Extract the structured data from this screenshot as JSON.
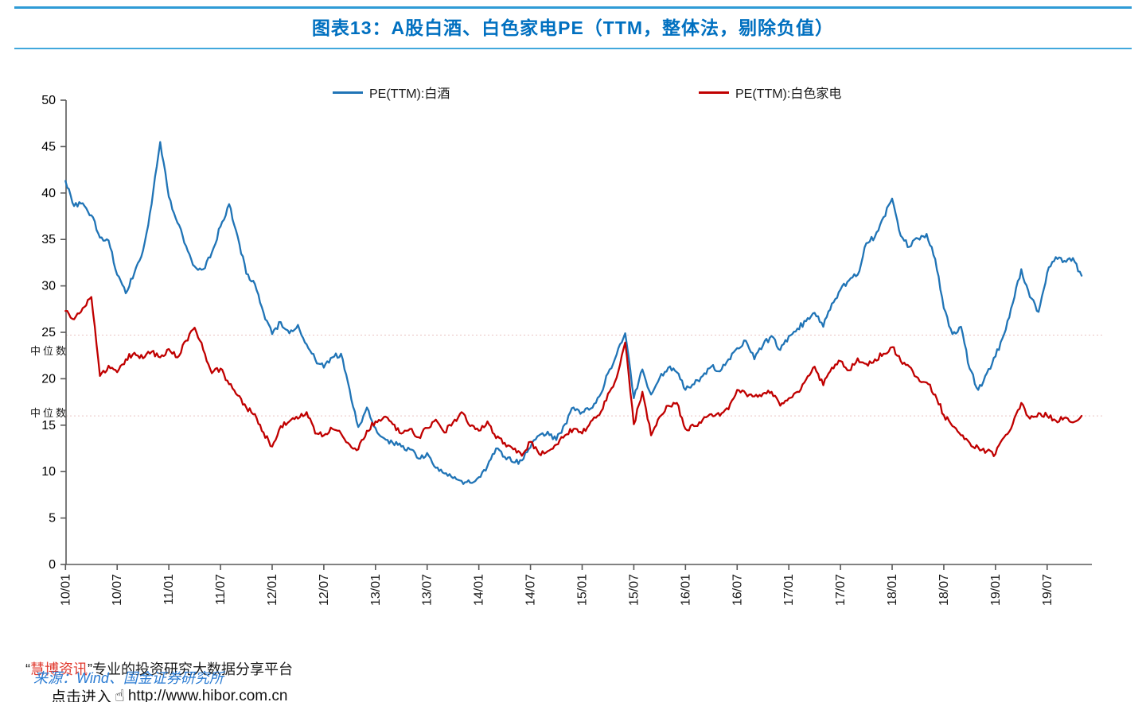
{
  "header": {
    "title": "图表13：A股白酒、白色家电PE（TTM，整体法，剔除负值）"
  },
  "colors": {
    "title_blue": "#0070c0",
    "rule_blue": "#2e9bd6",
    "baijiu_line": "#2074b6",
    "appliance_line": "#c00000",
    "median_line": "#e9c3c1",
    "axis": "#595959"
  },
  "footer": {
    "open_quote": "“",
    "brand": "慧博资讯",
    "close_quote": "”",
    "tagline": "专业的投资研究大数据分享平台",
    "source_line": "来源：Wind、国金证券研究所",
    "click_prefix": "点击进入",
    "url": "http://www.hibor.com.cn",
    "hand_icon": "☝"
  },
  "chart_data": {
    "type": "line",
    "title": "图表13：A股白酒、白色家电PE（TTM，整体法，剔除负值）",
    "xlabel": "",
    "ylabel": "",
    "ylim": [
      0,
      50
    ],
    "grid": false,
    "legend_position": "top",
    "y_ticks": [
      0,
      5,
      10,
      15,
      20,
      25,
      30,
      35,
      40,
      45,
      50
    ],
    "x_tick_labels": [
      "10/01",
      "10/07",
      "11/01",
      "11/07",
      "12/01",
      "12/07",
      "13/01",
      "13/07",
      "14/01",
      "14/07",
      "15/01",
      "15/07",
      "16/01",
      "16/07",
      "17/01",
      "17/07",
      "18/01",
      "18/07",
      "19/01",
      "19/07"
    ],
    "x": [
      "2010-01",
      "2010-02",
      "2010-03",
      "2010-04",
      "2010-05",
      "2010-06",
      "2010-07",
      "2010-08",
      "2010-09",
      "2010-10",
      "2010-11",
      "2010-12",
      "2011-01",
      "2011-02",
      "2011-03",
      "2011-04",
      "2011-05",
      "2011-06",
      "2011-07",
      "2011-08",
      "2011-09",
      "2011-10",
      "2011-11",
      "2011-12",
      "2012-01",
      "2012-02",
      "2012-03",
      "2012-04",
      "2012-05",
      "2012-06",
      "2012-07",
      "2012-08",
      "2012-09",
      "2012-10",
      "2012-11",
      "2012-12",
      "2013-01",
      "2013-02",
      "2013-03",
      "2013-04",
      "2013-05",
      "2013-06",
      "2013-07",
      "2013-08",
      "2013-09",
      "2013-10",
      "2013-11",
      "2013-12",
      "2014-01",
      "2014-02",
      "2014-03",
      "2014-04",
      "2014-05",
      "2014-06",
      "2014-07",
      "2014-08",
      "2014-09",
      "2014-10",
      "2014-11",
      "2014-12",
      "2015-01",
      "2015-02",
      "2015-03",
      "2015-04",
      "2015-05",
      "2015-06",
      "2015-07",
      "2015-08",
      "2015-09",
      "2015-10",
      "2015-11",
      "2015-12",
      "2016-01",
      "2016-02",
      "2016-03",
      "2016-04",
      "2016-05",
      "2016-06",
      "2016-07",
      "2016-08",
      "2016-09",
      "2016-10",
      "2016-11",
      "2016-12",
      "2017-01",
      "2017-02",
      "2017-03",
      "2017-04",
      "2017-05",
      "2017-06",
      "2017-07",
      "2017-08",
      "2017-09",
      "2017-10",
      "2017-11",
      "2017-12",
      "2018-01",
      "2018-02",
      "2018-03",
      "2018-04",
      "2018-05",
      "2018-06",
      "2018-07",
      "2018-08",
      "2018-09",
      "2018-10",
      "2018-11",
      "2018-12",
      "2019-01",
      "2019-02",
      "2019-03",
      "2019-04",
      "2019-05",
      "2019-06",
      "2019-07",
      "2019-08",
      "2019-09",
      "2019-10",
      "2019-11"
    ],
    "series": [
      {
        "name": "PE(TTM):白酒",
        "color": "#2074b6",
        "values": [
          41.3,
          38.6,
          38.9,
          37.6,
          35.2,
          34.9,
          31.2,
          29.2,
          31.4,
          33.8,
          38.8,
          45.5,
          39.6,
          36.8,
          34.3,
          32.1,
          31.8,
          33.6,
          36.4,
          38.8,
          35.3,
          31.3,
          30.2,
          27.1,
          24.8,
          26.1,
          24.9,
          25.8,
          23.7,
          22.1,
          21.2,
          22.3,
          22.7,
          18.8,
          14.8,
          16.9,
          14.7,
          13.6,
          13.1,
          12.7,
          12.4,
          11.4,
          12.0,
          10.4,
          9.8,
          9.3,
          9.0,
          8.8,
          9.4,
          10.6,
          12.5,
          11.6,
          11.0,
          11.2,
          12.6,
          13.9,
          14.3,
          13.4,
          15.1,
          16.9,
          16.4,
          16.8,
          18.1,
          20.6,
          22.6,
          24.9,
          17.9,
          21.0,
          18.3,
          20.1,
          21.2,
          20.7,
          18.8,
          19.4,
          20.3,
          21.3,
          20.8,
          22.1,
          23.3,
          24.1,
          22.1,
          23.6,
          24.6,
          23.1,
          24.6,
          25.4,
          26.2,
          27.1,
          25.6,
          28.1,
          29.6,
          30.6,
          31.2,
          34.6,
          35.3,
          37.4,
          39.4,
          35.4,
          34.2,
          35.1,
          35.6,
          32.9,
          27.6,
          24.8,
          25.6,
          21.1,
          18.8,
          20.6,
          22.4,
          24.8,
          28.1,
          31.8,
          28.8,
          27.2,
          31.4,
          33.1,
          32.7,
          33.0,
          31.1
        ]
      },
      {
        "name": "PE(TTM):白色家电",
        "color": "#c00000",
        "values": [
          27.3,
          26.4,
          27.6,
          28.8,
          20.3,
          21.4,
          20.7,
          22.1,
          22.8,
          22.2,
          22.9,
          22.3,
          23.2,
          22.3,
          24.1,
          25.5,
          23.1,
          20.6,
          21.1,
          19.4,
          18.2,
          16.9,
          16.2,
          14.2,
          12.7,
          14.9,
          15.4,
          15.7,
          16.4,
          14.1,
          13.9,
          14.6,
          14.1,
          12.9,
          12.4,
          14.4,
          15.4,
          15.9,
          15.1,
          14.1,
          14.6,
          13.7,
          14.7,
          15.6,
          14.2,
          15.3,
          16.4,
          14.9,
          14.4,
          15.4,
          13.6,
          13.1,
          12.4,
          11.7,
          13.2,
          11.9,
          12.2,
          12.9,
          13.9,
          14.6,
          14.1,
          15.4,
          16.1,
          18.4,
          20.1,
          23.9,
          15.1,
          18.6,
          13.9,
          15.9,
          17.1,
          17.4,
          14.6,
          14.9,
          15.6,
          16.2,
          16.0,
          16.7,
          18.8,
          18.4,
          18.1,
          18.4,
          18.6,
          17.1,
          17.9,
          18.6,
          19.9,
          21.3,
          19.3,
          21.2,
          21.9,
          20.9,
          22.2,
          21.6,
          22.1,
          22.7,
          23.4,
          21.9,
          21.3,
          20.1,
          19.6,
          18.3,
          16.1,
          14.9,
          13.9,
          13.1,
          12.6,
          12.2,
          11.9,
          13.7,
          15.1,
          17.4,
          15.7,
          16.3,
          16.0,
          15.5,
          15.8,
          15.3,
          16.0
        ]
      }
    ],
    "median_lines": [
      {
        "label": "中位数",
        "value": 24.7,
        "label_at": 23.1,
        "series": "PE(TTM):白酒"
      },
      {
        "label": "中位数",
        "value": 16.0,
        "label_at": 16.4,
        "series": "PE(TTM):白色家电"
      }
    ]
  }
}
